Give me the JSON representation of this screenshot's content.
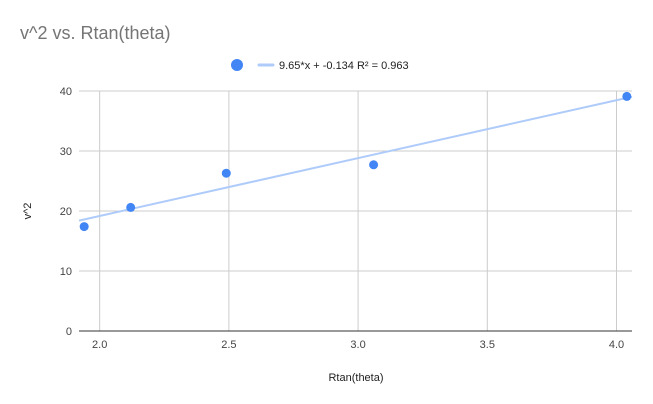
{
  "chart_data": {
    "type": "scatter",
    "title": "v^2 vs. Rtan(theta)",
    "xlabel": "Rtan(theta)",
    "ylabel": "v^2",
    "xlim": [
      1.92,
      4.06
    ],
    "ylim": [
      0,
      40
    ],
    "xticks": [
      "2.0",
      "2.5",
      "3.0",
      "3.5",
      "4.0"
    ],
    "yticks": [
      "0",
      "10",
      "20",
      "30",
      "40"
    ],
    "grid": true,
    "legend_position": "top",
    "series": [
      {
        "points": [
          {
            "x": 1.94,
            "y": 17.4
          },
          {
            "x": 2.12,
            "y": 20.6
          },
          {
            "x": 2.49,
            "y": 26.3
          },
          {
            "x": 3.06,
            "y": 27.7
          },
          {
            "x": 4.04,
            "y": 39.1
          }
        ]
      }
    ],
    "trendline": {
      "label": "9.65*x + -0.134 R² = 0.963",
      "slope": 9.65,
      "intercept": -0.134
    },
    "colors": {
      "point": "#4285f4",
      "trendline": "#aecbfa",
      "grid": "#cccccc",
      "axis": "#333333"
    }
  }
}
